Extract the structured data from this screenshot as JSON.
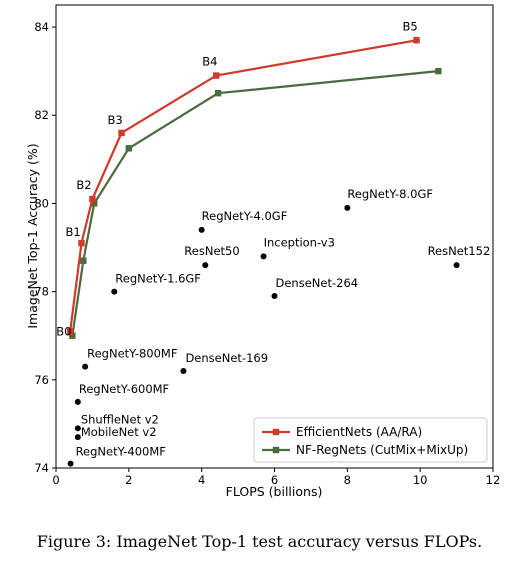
{
  "caption": "Figure 3: ImageNet Top-1 test accuracy versus FLOPs.",
  "chart_data": {
    "type": "line",
    "xlabel": "FLOPS (billions)",
    "ylabel": "ImageNet Top-1 Accuracy (%)",
    "xlim": [
      0,
      12
    ],
    "ylim": [
      74,
      84.5
    ],
    "xticks": [
      0,
      2,
      4,
      6,
      8,
      10,
      12
    ],
    "yticks": [
      74,
      76,
      78,
      80,
      82,
      84
    ],
    "grid": false,
    "legend_position": "lower-right",
    "series": [
      {
        "name": "EfficientNets (AA/RA)",
        "color": "#d03a2b",
        "marker": "square",
        "points": [
          {
            "x": 0.39,
            "y": 77.1,
            "label": "B0"
          },
          {
            "x": 0.7,
            "y": 79.1,
            "label": "B1"
          },
          {
            "x": 1.0,
            "y": 80.1,
            "label": "B2"
          },
          {
            "x": 1.8,
            "y": 81.6,
            "label": "B3"
          },
          {
            "x": 4.4,
            "y": 82.9,
            "label": "B4"
          },
          {
            "x": 9.9,
            "y": 83.7,
            "label": "B5"
          }
        ]
      },
      {
        "name": "NF-RegNets (CutMix+MixUp)",
        "color": "#4a6b3c",
        "marker": "square",
        "points": [
          {
            "x": 0.45,
            "y": 77.0
          },
          {
            "x": 0.75,
            "y": 78.7
          },
          {
            "x": 1.05,
            "y": 80.0
          },
          {
            "x": 2.0,
            "y": 81.25
          },
          {
            "x": 4.45,
            "y": 82.5
          },
          {
            "x": 10.5,
            "y": 83.0
          }
        ]
      }
    ],
    "scatter": {
      "color": "#000000",
      "points": [
        {
          "x": 0.4,
          "y": 74.1,
          "label": "RegNetY-400MF"
        },
        {
          "x": 0.6,
          "y": 74.7,
          "label": "MobileNet v2"
        },
        {
          "x": 0.6,
          "y": 74.9,
          "label": "ShuffleNet v2"
        },
        {
          "x": 0.6,
          "y": 75.5,
          "label": "RegNetY-600MF"
        },
        {
          "x": 0.8,
          "y": 76.3,
          "label": "RegNetY-800MF"
        },
        {
          "x": 1.6,
          "y": 78.0,
          "label": "RegNetY-1.6GF"
        },
        {
          "x": 3.5,
          "y": 76.2,
          "label": "DenseNet-169"
        },
        {
          "x": 4.0,
          "y": 79.4,
          "label": "RegNetY-4.0GF"
        },
        {
          "x": 4.1,
          "y": 78.6,
          "label": "ResNet50"
        },
        {
          "x": 5.7,
          "y": 78.8,
          "label": "Inception-v3"
        },
        {
          "x": 6.0,
          "y": 77.9,
          "label": "DenseNet-264"
        },
        {
          "x": 8.0,
          "y": 79.9,
          "label": "RegNetY-8.0GF"
        },
        {
          "x": 11.0,
          "y": 78.6,
          "label": "ResNet152"
        }
      ]
    }
  }
}
